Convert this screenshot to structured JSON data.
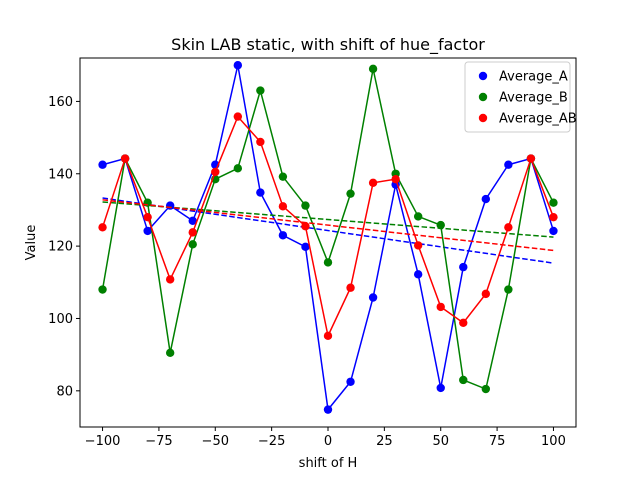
{
  "chart_data": {
    "type": "line",
    "title": "Skin LAB static, with shift of hue_factor",
    "xlabel": "shift of H",
    "ylabel": "Value",
    "xlim": [
      -110,
      110
    ],
    "ylim": [
      70,
      172
    ],
    "xticks": [
      -100,
      -75,
      -50,
      -25,
      0,
      25,
      50,
      75,
      100
    ],
    "xtick_labels": [
      "−100",
      "−75",
      "−50",
      "−25",
      "0",
      "25",
      "50",
      "75",
      "100"
    ],
    "yticks": [
      80,
      100,
      120,
      140,
      160
    ],
    "ytick_labels": [
      "80",
      "100",
      "120",
      "140",
      "160"
    ],
    "grid": false,
    "legend_position": "top-right",
    "x": [
      -100,
      -90,
      -80,
      -70,
      -60,
      -50,
      -40,
      -30,
      -20,
      -10,
      0,
      10,
      20,
      30,
      40,
      50,
      60,
      70,
      80,
      90,
      100
    ],
    "series": [
      {
        "name": "Average_A",
        "color": "#0000ff",
        "values": [
          142.5,
          144.2,
          124.2,
          131.2,
          127.0,
          142.5,
          170.0,
          134.8,
          123.0,
          119.8,
          74.8,
          82.5,
          105.8,
          137.0,
          112.2,
          80.8,
          114.2,
          133.0,
          142.5,
          144.2,
          124.2
        ],
        "trend": [
          133.3,
          115.3
        ]
      },
      {
        "name": "Average_B",
        "color": "#008000",
        "values": [
          108.0,
          144.2,
          132.0,
          90.5,
          120.5,
          138.5,
          141.5,
          163.0,
          139.2,
          131.2,
          115.5,
          134.5,
          169.0,
          140.0,
          128.2,
          125.8,
          83.0,
          80.5,
          108.0,
          144.2,
          132.0
        ],
        "trend": [
          132.2,
          122.5
        ]
      },
      {
        "name": "Average_AB",
        "color": "#ff0000",
        "values": [
          125.2,
          144.2,
          128.0,
          110.8,
          123.8,
          140.5,
          155.8,
          148.8,
          131.0,
          125.5,
          95.2,
          108.5,
          137.5,
          138.5,
          120.2,
          103.2,
          98.8,
          106.8,
          125.2,
          144.2,
          128.0
        ],
        "trend": [
          132.8,
          118.8
        ]
      }
    ]
  }
}
